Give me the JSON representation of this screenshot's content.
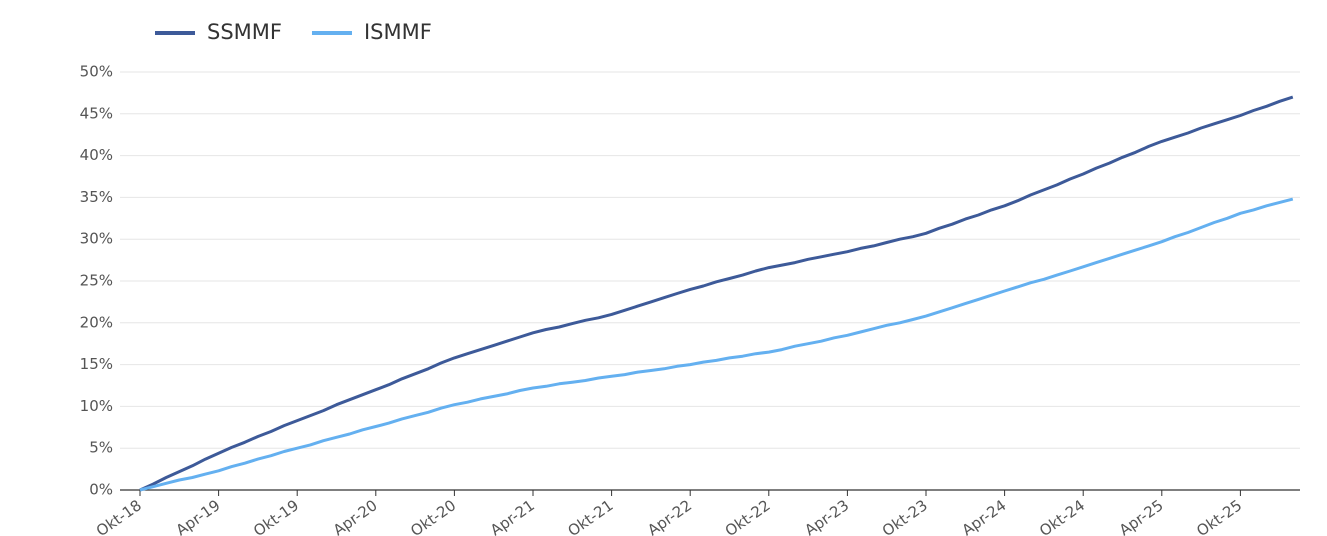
{
  "chart_data": {
    "type": "line",
    "categories": [
      "Okt-18",
      null,
      null,
      null,
      null,
      null,
      "Apr-19",
      null,
      null,
      null,
      null,
      null,
      "Okt-19",
      null,
      null,
      null,
      null,
      null,
      "Apr-20",
      null,
      null,
      null,
      null,
      null,
      "Okt-20",
      null,
      null,
      null,
      null,
      null,
      "Apr-21",
      null,
      null,
      null,
      null,
      null,
      "Okt-21",
      null,
      null,
      null,
      null,
      null,
      "Apr-22",
      null,
      null,
      null,
      null,
      null,
      "Okt-22",
      null,
      null,
      null,
      null,
      null,
      "Apr-23",
      null,
      null,
      null,
      null,
      null,
      "Okt-23",
      null,
      null,
      null,
      null,
      null,
      "Apr-24",
      null,
      null,
      null,
      null,
      null,
      "Okt-24",
      null,
      null,
      null,
      null,
      null,
      "Apr-25",
      null,
      null,
      null,
      null,
      null,
      "Okt-25",
      null,
      null,
      null,
      null
    ],
    "series": [
      {
        "name": "SSMMF",
        "color": "#3d5a99",
        "values": [
          0,
          0.7,
          1.5,
          2.2,
          2.9,
          3.7,
          4.4,
          5.1,
          5.7,
          6.4,
          7.0,
          7.7,
          8.3,
          8.9,
          9.5,
          10.2,
          10.8,
          11.4,
          12.0,
          12.6,
          13.3,
          13.9,
          14.5,
          15.2,
          15.8,
          16.3,
          16.8,
          17.3,
          17.8,
          18.3,
          18.8,
          19.2,
          19.5,
          19.9,
          20.3,
          20.6,
          21.0,
          21.5,
          22.0,
          22.5,
          23.0,
          23.5,
          24.0,
          24.4,
          24.9,
          25.3,
          25.7,
          26.2,
          26.6,
          26.9,
          27.2,
          27.6,
          27.9,
          28.2,
          28.5,
          28.9,
          29.2,
          29.6,
          30.0,
          30.3,
          30.7,
          31.3,
          31.8,
          32.4,
          32.9,
          33.5,
          34.0,
          34.6,
          35.3,
          35.9,
          36.5,
          37.2,
          37.8,
          38.5,
          39.1,
          39.8,
          40.4,
          41.1,
          41.7,
          42.2,
          42.7,
          43.3,
          43.8,
          44.3,
          44.8,
          45.4,
          45.9,
          46.5,
          47.0
        ]
      },
      {
        "name": "ISMMF",
        "color": "#64b0f0",
        "values": [
          0,
          0.4,
          0.8,
          1.2,
          1.5,
          1.9,
          2.3,
          2.8,
          3.2,
          3.7,
          4.1,
          4.6,
          5.0,
          5.4,
          5.9,
          6.3,
          6.7,
          7.2,
          7.6,
          8.0,
          8.5,
          8.9,
          9.3,
          9.8,
          10.2,
          10.5,
          10.9,
          11.2,
          11.5,
          11.9,
          12.2,
          12.4,
          12.7,
          12.9,
          13.1,
          13.4,
          13.6,
          13.8,
          14.1,
          14.3,
          14.5,
          14.8,
          15.0,
          15.3,
          15.5,
          15.8,
          16.0,
          16.3,
          16.5,
          16.8,
          17.2,
          17.5,
          17.8,
          18.2,
          18.5,
          18.9,
          19.3,
          19.7,
          20.0,
          20.4,
          20.8,
          21.3,
          21.8,
          22.3,
          22.8,
          23.3,
          23.8,
          24.3,
          24.8,
          25.2,
          25.7,
          26.2,
          26.7,
          27.2,
          27.7,
          28.2,
          28.7,
          29.2,
          29.7,
          30.3,
          30.8,
          31.4,
          32.0,
          32.5,
          33.1,
          33.5,
          34.0,
          34.4,
          34.8
        ]
      }
    ],
    "ylim": [
      0,
      50
    ],
    "yticks": [
      {
        "value": 0,
        "label": "0%"
      },
      {
        "value": 5,
        "label": "5%"
      },
      {
        "value": 10,
        "label": "10%"
      },
      {
        "value": 15,
        "label": "15%"
      },
      {
        "value": 20,
        "label": "20%"
      },
      {
        "value": 25,
        "label": "25%"
      },
      {
        "value": 30,
        "label": "30%"
      },
      {
        "value": 35,
        "label": "35%"
      },
      {
        "value": 40,
        "label": "40%"
      },
      {
        "value": 45,
        "label": "45%"
      },
      {
        "value": 50,
        "label": "50%"
      }
    ],
    "grid": true,
    "legend": "top-left"
  }
}
